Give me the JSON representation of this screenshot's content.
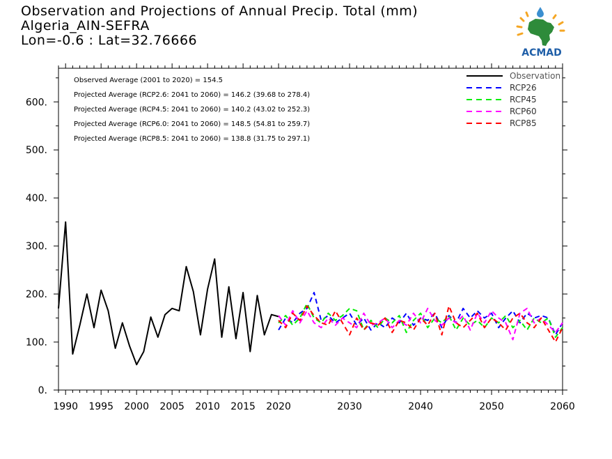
{
  "title_lines": [
    "Observation and Projections of Annual Precip. Total (mm)",
    "Algeria_AIN-SEFRA",
    "Lon=-0.6 : Lat=32.76666"
  ],
  "logo_text": "ACMAD",
  "chart_data": {
    "type": "line",
    "title": "Observation and Projections of Annual Precip. Total (mm)",
    "xlabel": "",
    "ylabel": "",
    "xlim": [
      1989,
      2060
    ],
    "ylim": [
      0,
      670
    ],
    "x_ticks": [
      1990,
      1995,
      2000,
      2005,
      2010,
      2015,
      2020,
      2030,
      2040,
      2050,
      2060
    ],
    "y_ticks": [
      0,
      100,
      200,
      300,
      400,
      500,
      600
    ],
    "y_tick_labels": [
      "0.",
      "100.",
      "200.",
      "300.",
      "400.",
      "500.",
      "600."
    ],
    "grid": false,
    "legend_position": "top-right",
    "annotations": [
      "Observed Average (2001 to 2020) = 154.5",
      "Projected Average (RCP2.6: 2041 to 2060) = 146.2 (39.68 to 278.4)",
      "Projected Average (RCP4.5: 2041 to 2060) = 140.2 (43.02 to 252.3)",
      "Projected Average (RCP6.0: 2041 to 2060) = 148.5 (54.81 to 259.7)",
      "Projected Average (RCP8.5: 2041 to 2060) = 138.8 (31.75 to 297.1)"
    ],
    "series": [
      {
        "name": "Observation",
        "color": "#000000",
        "dashed": false,
        "x": [
          1989,
          1990,
          1991,
          1992,
          1993,
          1994,
          1995,
          1996,
          1997,
          1998,
          1999,
          2000,
          2001,
          2002,
          2003,
          2004,
          2005,
          2006,
          2007,
          2008,
          2009,
          2010,
          2011,
          2012,
          2013,
          2014,
          2015,
          2016,
          2017,
          2018,
          2019,
          2020
        ],
        "y": [
          170,
          350,
          75,
          135,
          200,
          130,
          208,
          165,
          87,
          140,
          92,
          53,
          80,
          152,
          110,
          157,
          170,
          165,
          257,
          205,
          115,
          210,
          273,
          110,
          215,
          107,
          203,
          80,
          197,
          115,
          157,
          153
        ]
      },
      {
        "name": "RCP26",
        "color": "#0000ff",
        "dashed": true,
        "x": [
          2020,
          2021,
          2022,
          2023,
          2024,
          2025,
          2026,
          2027,
          2028,
          2029,
          2030,
          2031,
          2032,
          2033,
          2034,
          2035,
          2036,
          2037,
          2038,
          2039,
          2040,
          2041,
          2042,
          2043,
          2044,
          2045,
          2046,
          2047,
          2048,
          2049,
          2050,
          2051,
          2052,
          2053,
          2054,
          2055,
          2056,
          2057,
          2058,
          2059,
          2060
        ],
        "y": [
          125,
          150,
          140,
          160,
          170,
          203,
          145,
          155,
          140,
          150,
          160,
          135,
          150,
          125,
          140,
          130,
          150,
          140,
          160,
          135,
          150,
          145,
          160,
          130,
          155,
          140,
          170,
          150,
          165,
          150,
          160,
          130,
          150,
          165,
          140,
          160,
          150,
          155,
          150,
          115,
          140
        ]
      },
      {
        "name": "RCP45",
        "color": "#00ee00",
        "dashed": true,
        "x": [
          2020,
          2021,
          2022,
          2023,
          2024,
          2025,
          2026,
          2027,
          2028,
          2029,
          2030,
          2031,
          2032,
          2033,
          2034,
          2035,
          2036,
          2037,
          2038,
          2039,
          2040,
          2041,
          2042,
          2043,
          2044,
          2045,
          2046,
          2047,
          2048,
          2049,
          2050,
          2051,
          2052,
          2053,
          2054,
          2055,
          2056,
          2057,
          2058,
          2059,
          2060
        ],
        "y": [
          140,
          155,
          135,
          150,
          180,
          150,
          140,
          160,
          145,
          155,
          170,
          165,
          125,
          145,
          130,
          150,
          140,
          155,
          120,
          145,
          160,
          130,
          150,
          140,
          155,
          125,
          150,
          135,
          145,
          130,
          150,
          140,
          155,
          130,
          145,
          125,
          150,
          140,
          150,
          110,
          130
        ]
      },
      {
        "name": "RCP60",
        "color": "#ff00ff",
        "dashed": true,
        "x": [
          2020,
          2021,
          2022,
          2023,
          2024,
          2025,
          2026,
          2027,
          2028,
          2029,
          2030,
          2031,
          2032,
          2033,
          2034,
          2035,
          2036,
          2037,
          2038,
          2039,
          2040,
          2041,
          2042,
          2043,
          2044,
          2045,
          2046,
          2047,
          2048,
          2049,
          2050,
          2051,
          2052,
          2053,
          2054,
          2055,
          2056,
          2057,
          2058,
          2059,
          2060
        ],
        "y": [
          155,
          135,
          165,
          140,
          165,
          140,
          130,
          150,
          135,
          150,
          140,
          130,
          160,
          135,
          140,
          150,
          130,
          145,
          135,
          160,
          140,
          170,
          145,
          135,
          150,
          140,
          155,
          125,
          160,
          140,
          165,
          150,
          140,
          105,
          160,
          170,
          140,
          150,
          135,
          120,
          140
        ]
      },
      {
        "name": "RCP85",
        "color": "#ff0000",
        "dashed": true,
        "x": [
          2020,
          2021,
          2022,
          2023,
          2024,
          2025,
          2026,
          2027,
          2028,
          2029,
          2030,
          2031,
          2032,
          2033,
          2034,
          2035,
          2036,
          2037,
          2038,
          2039,
          2040,
          2041,
          2042,
          2043,
          2044,
          2045,
          2046,
          2047,
          2048,
          2049,
          2050,
          2051,
          2052,
          2053,
          2054,
          2055,
          2056,
          2057,
          2058,
          2059,
          2060
        ],
        "y": [
          145,
          130,
          160,
          145,
          175,
          155,
          140,
          135,
          165,
          140,
          115,
          150,
          125,
          140,
          135,
          150,
          120,
          145,
          140,
          125,
          150,
          135,
          160,
          115,
          175,
          140,
          130,
          145,
          160,
          130,
          150,
          140,
          125,
          150,
          160,
          140,
          130,
          150,
          125,
          100,
          130
        ]
      }
    ]
  }
}
